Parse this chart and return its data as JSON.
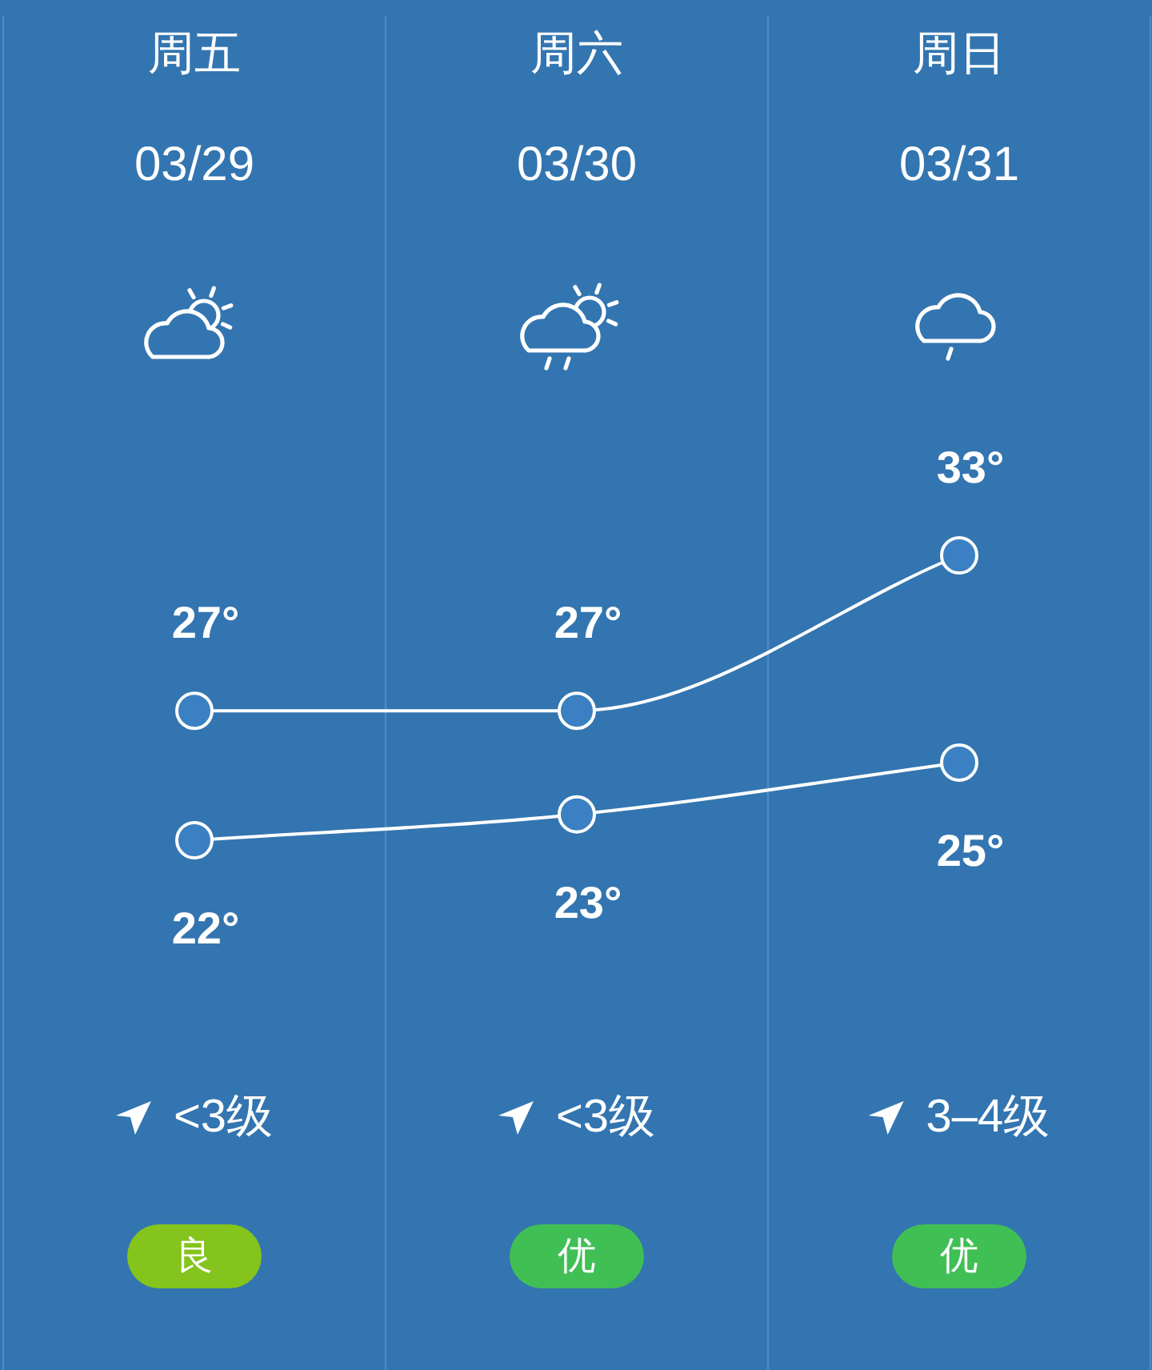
{
  "chart_data": {
    "type": "line",
    "categories": [
      "周五",
      "周六",
      "周日"
    ],
    "series": [
      {
        "color": "#ffffff",
        "values": [
          27,
          27,
          33
        ],
        "value_labels": [
          "27°",
          "27°",
          "33°"
        ]
      },
      {
        "color": "#ffffff",
        "values": [
          22,
          23,
          25
        ],
        "value_labels": [
          "22°",
          "23°",
          "25°"
        ]
      }
    ],
    "marker": "circle",
    "line_style": "solid",
    "tick_labels": "x",
    "annotations": [
      "03/29",
      "03/30",
      "03/31",
      "<3级",
      "<3级",
      "3–4级",
      "良",
      "优",
      "优"
    ]
  }
}
